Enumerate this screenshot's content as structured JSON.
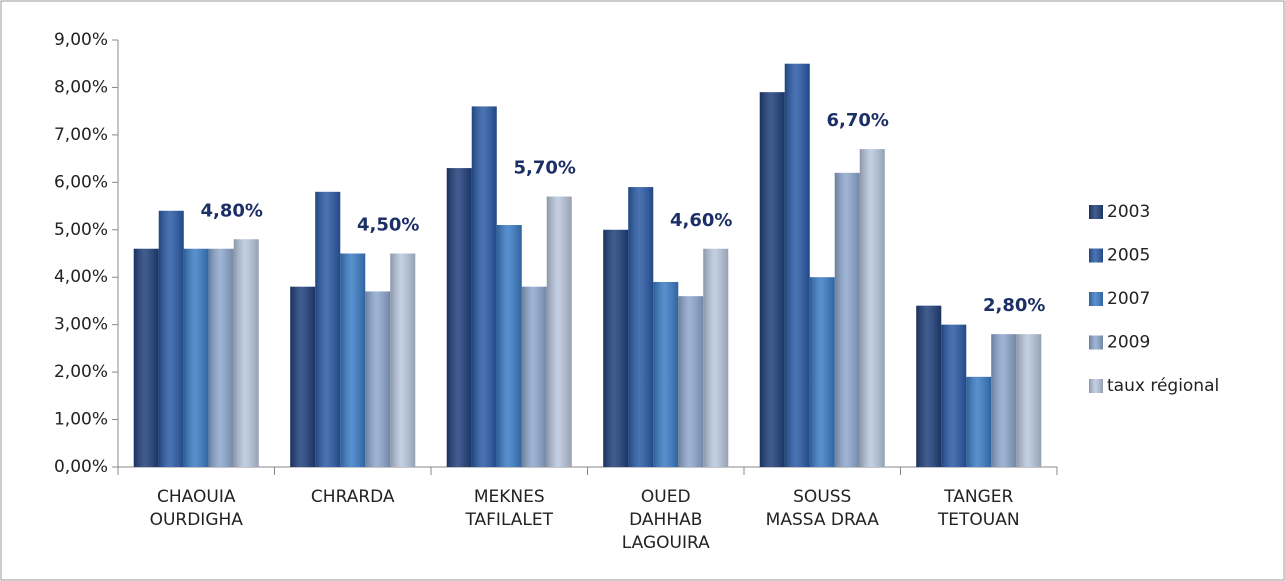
{
  "chart_data": {
    "type": "bar",
    "categories": [
      "CHAOUIA\nOURDIGHA",
      "CHRARDA",
      "MEKNES\nTAFILALET",
      "OUED\nDAHHAB\nLAGOUIRA",
      "SOUSS\nMASSA DRAA",
      "TANGER\nTETOUAN"
    ],
    "series": [
      {
        "name": "2003",
        "color": "#1f3f7a",
        "values": [
          4.6,
          3.8,
          6.3,
          5.0,
          7.9,
          3.4
        ]
      },
      {
        "name": "2005",
        "color": "#2a5aa6",
        "values": [
          5.4,
          5.8,
          7.6,
          5.9,
          8.5,
          3.0
        ]
      },
      {
        "name": "2007",
        "color": "#3b7cc6",
        "values": [
          4.6,
          4.5,
          5.1,
          3.9,
          4.0,
          1.9
        ]
      },
      {
        "name": "2009",
        "color": "#8ea8ce",
        "values": [
          4.6,
          3.7,
          3.8,
          3.6,
          6.2,
          2.8
        ]
      },
      {
        "name": "taux régional",
        "color": "#b9c7de",
        "values": [
          4.8,
          4.5,
          5.7,
          4.6,
          6.7,
          2.8
        ],
        "value_labels": [
          "4,80%",
          "4,50%",
          "5,70%",
          "4,60%",
          "6,70%",
          "2,80%"
        ]
      }
    ],
    "ylim": [
      0,
      9
    ],
    "yticks": [
      {
        "value": 0,
        "label": "0,00%"
      },
      {
        "value": 1,
        "label": "1,00%"
      },
      {
        "value": 2,
        "label": "2,00%"
      },
      {
        "value": 3,
        "label": "3,00%"
      },
      {
        "value": 4,
        "label": "4,00%"
      },
      {
        "value": 5,
        "label": "5,00%"
      },
      {
        "value": 6,
        "label": "6,00%"
      },
      {
        "value": 7,
        "label": "7,00%"
      },
      {
        "value": 8,
        "label": "8,00%"
      },
      {
        "value": 9,
        "label": "9,00%"
      }
    ],
    "grid": false,
    "legend": "right"
  }
}
